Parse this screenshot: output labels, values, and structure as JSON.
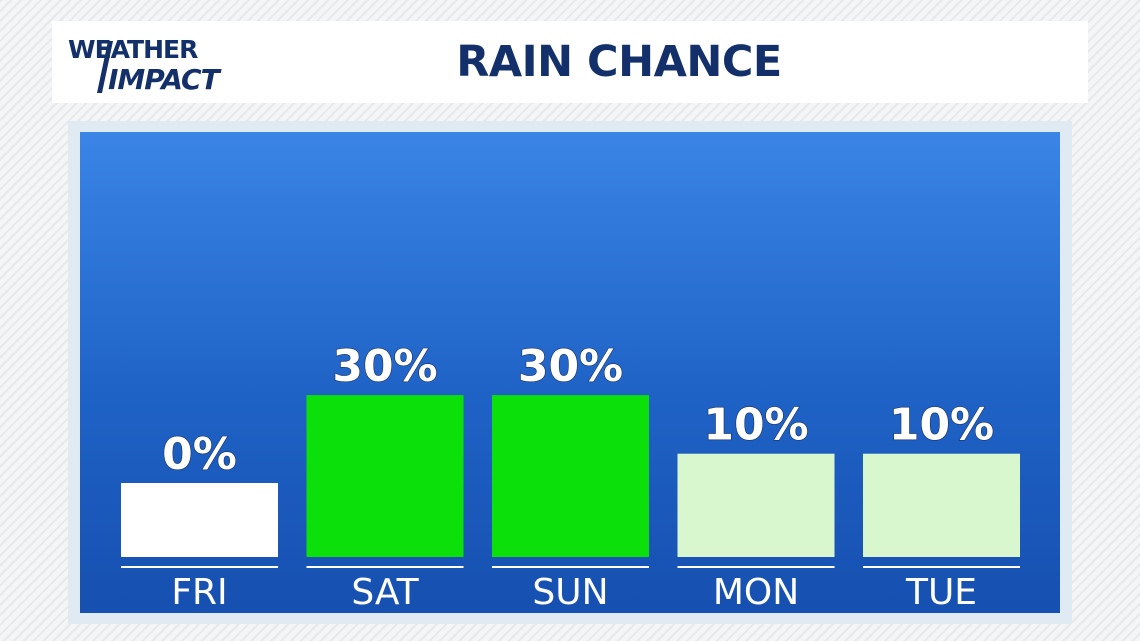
{
  "header": {
    "logo_line1": "WEATHER",
    "logo_line2": "IMPACT",
    "title": "RAIN CHANCE"
  },
  "colors": {
    "title": "#13306b",
    "zero": "#ffffff",
    "high": "#0be00b",
    "low": "#d9f7cf",
    "underline": "#ffffff"
  },
  "chart_data": {
    "type": "bar",
    "title": "RAIN CHANCE",
    "categories": [
      "FRI",
      "SAT",
      "SUN",
      "MON",
      "TUE"
    ],
    "values": [
      0,
      30,
      30,
      10,
      10
    ],
    "value_labels": [
      "0%",
      "30%",
      "30%",
      "10%",
      "10%"
    ],
    "bar_colors": [
      "#ffffff",
      "#0be00b",
      "#0be00b",
      "#d9f7cf",
      "#d9f7cf"
    ],
    "ylim": [
      0,
      100
    ]
  }
}
